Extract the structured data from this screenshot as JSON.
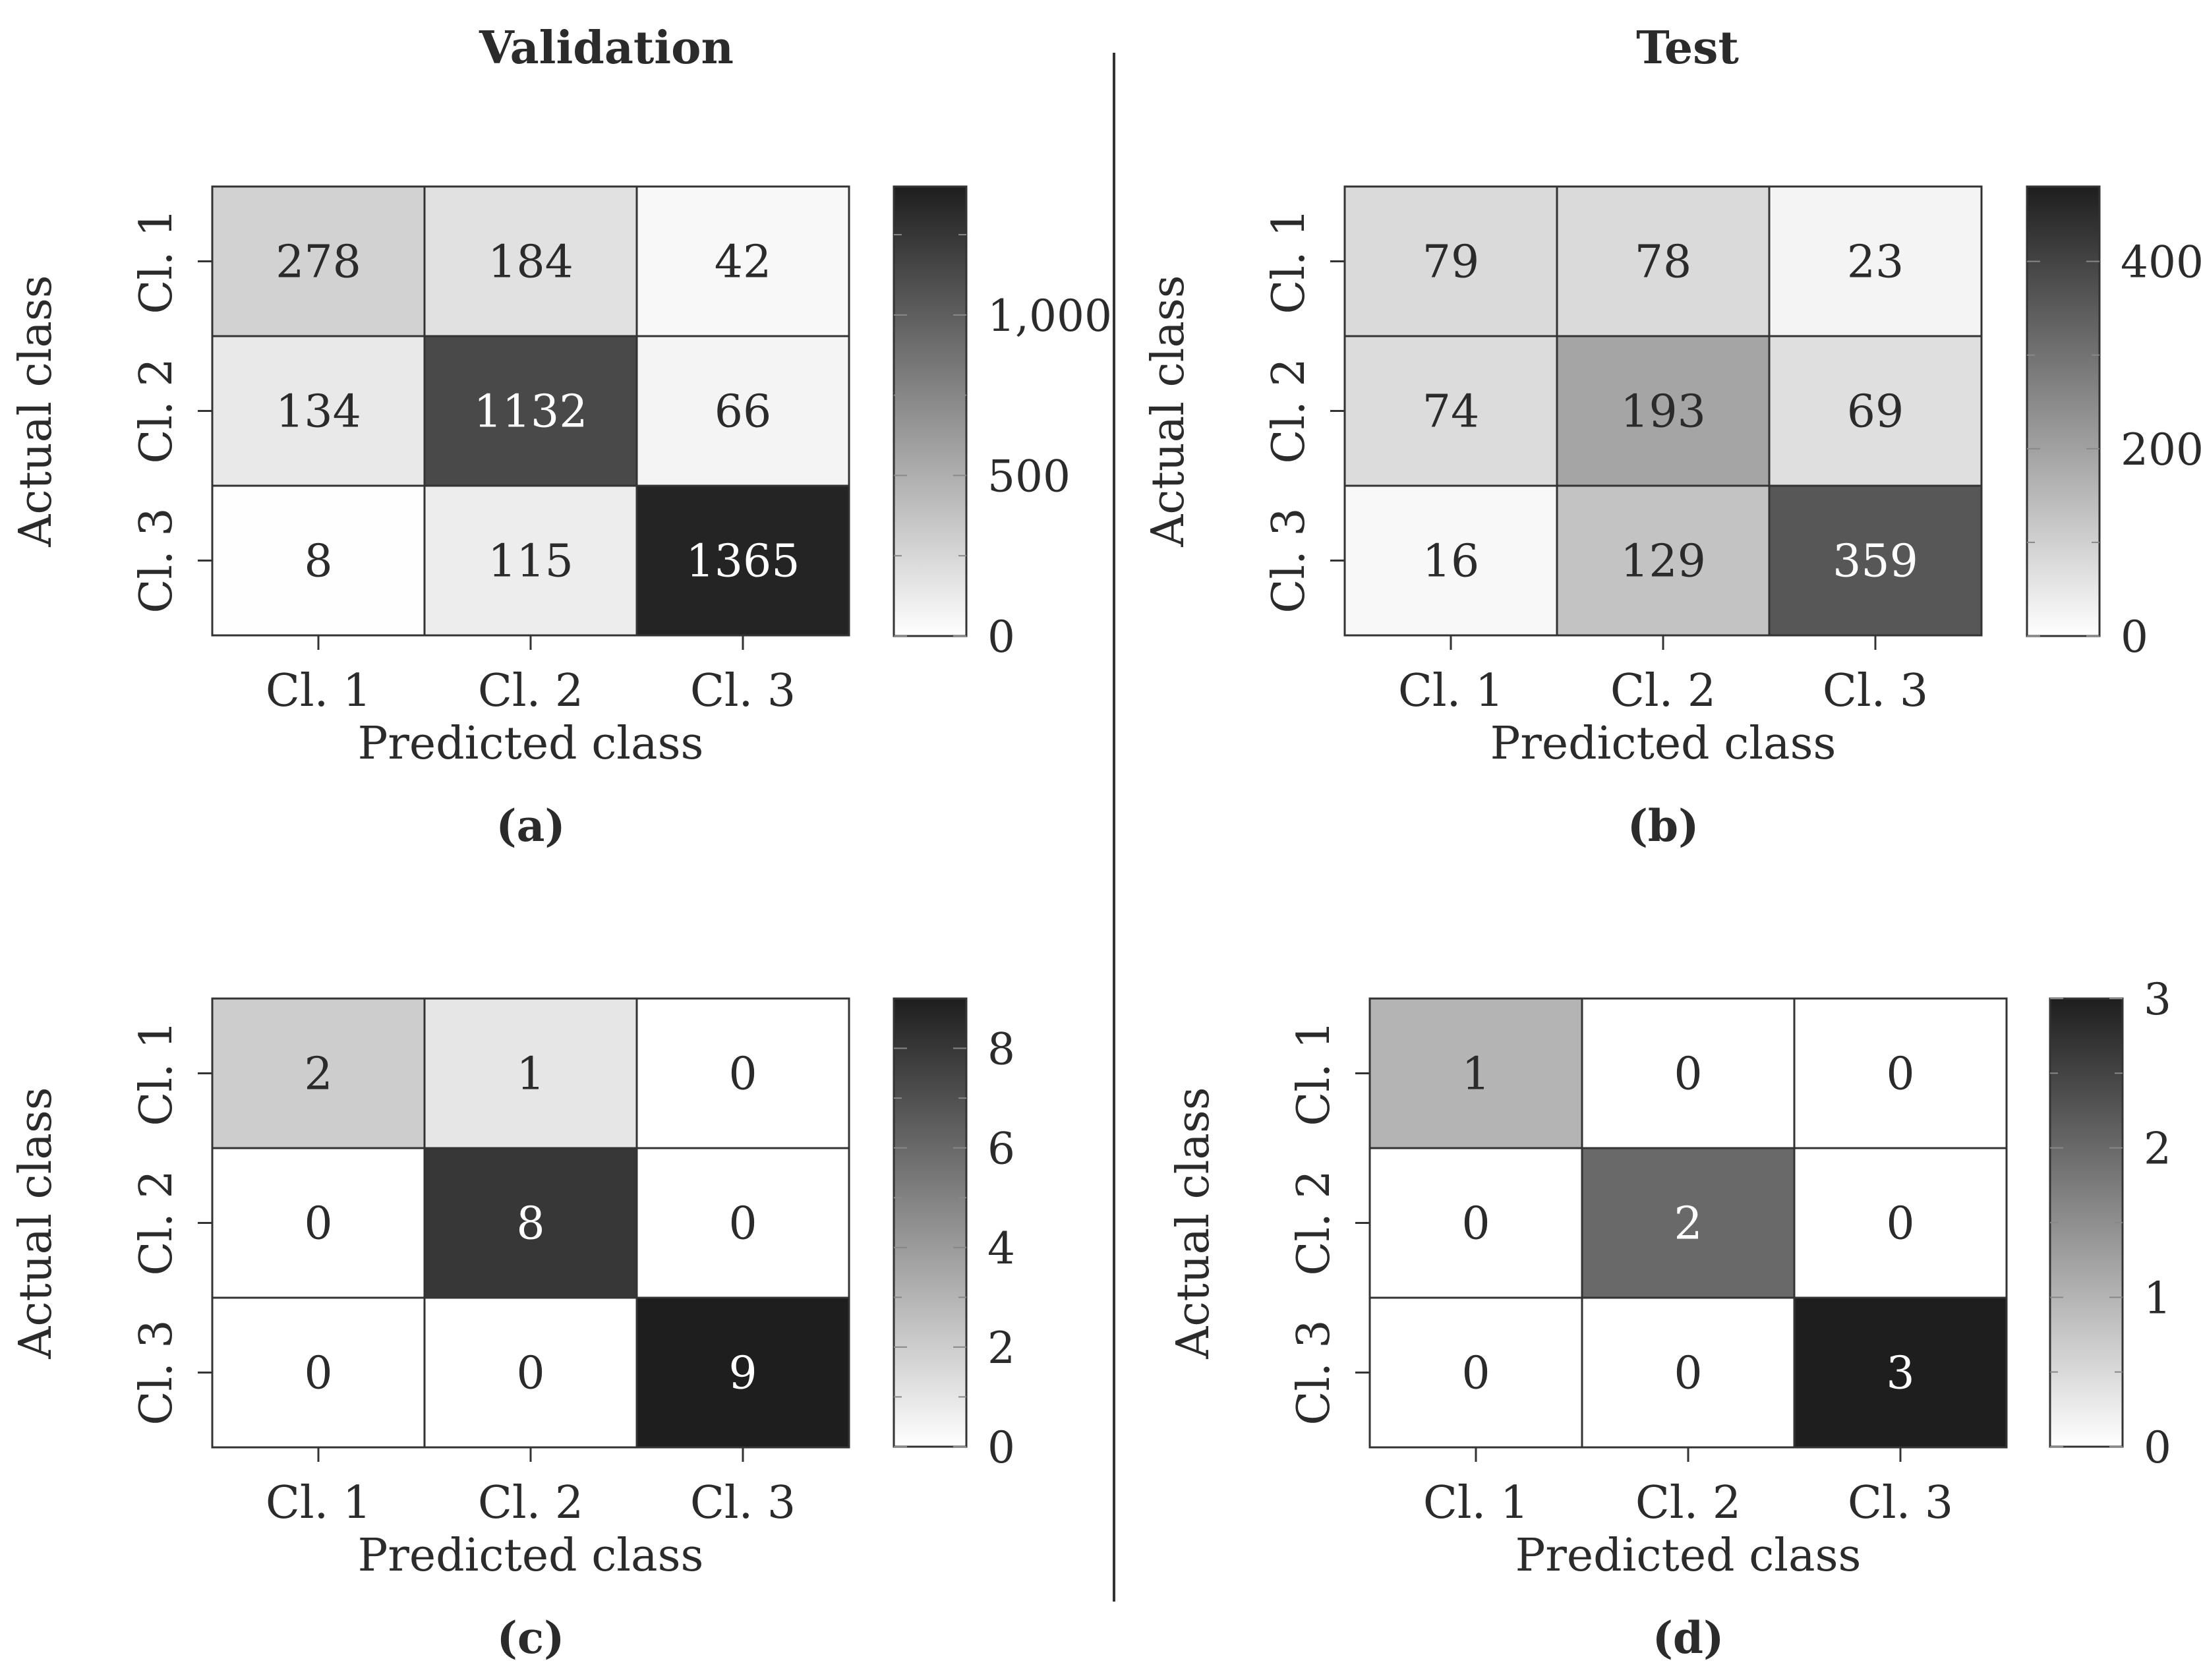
{
  "headers": {
    "validation": "Validation",
    "test": "Test"
  },
  "colors": {
    "ink": "#2b2b2b",
    "cell_border": "#333333",
    "light": "#ffffff",
    "dark": "#1e1e1e"
  },
  "chart_data": [
    {
      "type": "heatmap",
      "panel": "(a)",
      "xlabel": "Predicted class",
      "ylabel": "Actual class",
      "x_categories": [
        "Cl. 1",
        "Cl. 2",
        "Cl. 3"
      ],
      "y_categories": [
        "Cl. 1",
        "Cl. 2",
        "Cl. 3"
      ],
      "values": [
        [
          278,
          184,
          42
        ],
        [
          134,
          1132,
          66
        ],
        [
          8,
          115,
          1365
        ]
      ],
      "cell_labels": [
        [
          "278",
          "184",
          "42"
        ],
        [
          "134",
          "1132",
          "66"
        ],
        [
          "8",
          "115",
          "1365"
        ]
      ],
      "colorbar": {
        "min": 0,
        "max": 1400,
        "ticks": [
          0,
          500,
          1000
        ],
        "tick_labels": [
          "0",
          "500",
          "1,000"
        ],
        "minor_ticks": [
          250,
          750,
          1250
        ]
      }
    },
    {
      "type": "heatmap",
      "panel": "(b)",
      "xlabel": "Predicted class",
      "ylabel": "Actual class",
      "x_categories": [
        "Cl. 1",
        "Cl. 2",
        "Cl. 3"
      ],
      "y_categories": [
        "Cl. 1",
        "Cl. 2",
        "Cl. 3"
      ],
      "values": [
        [
          79,
          78,
          23
        ],
        [
          74,
          193,
          69
        ],
        [
          16,
          129,
          359
        ]
      ],
      "cell_labels": [
        [
          "79",
          "78",
          "23"
        ],
        [
          "74",
          "193",
          "69"
        ],
        [
          "16",
          "129",
          "359"
        ]
      ],
      "colorbar": {
        "min": 0,
        "max": 480,
        "ticks": [
          0,
          200,
          400
        ],
        "tick_labels": [
          "0",
          "200",
          "400"
        ],
        "minor_ticks": [
          100,
          300
        ]
      }
    },
    {
      "type": "heatmap",
      "panel": "(c)",
      "xlabel": "Predicted class",
      "ylabel": "Actual class",
      "x_categories": [
        "Cl. 1",
        "Cl. 2",
        "Cl. 3"
      ],
      "y_categories": [
        "Cl. 1",
        "Cl. 2",
        "Cl. 3"
      ],
      "values": [
        [
          2,
          1,
          0
        ],
        [
          0,
          8,
          0
        ],
        [
          0,
          0,
          9
        ]
      ],
      "cell_labels": [
        [
          "2",
          "1",
          "0"
        ],
        [
          "0",
          "8",
          "0"
        ],
        [
          "0",
          "0",
          "9"
        ]
      ],
      "colorbar": {
        "min": 0,
        "max": 9,
        "ticks": [
          0,
          2,
          4,
          6,
          8
        ],
        "tick_labels": [
          "0",
          "2",
          "4",
          "6",
          "8"
        ],
        "minor_ticks": [
          1,
          3,
          5,
          7
        ]
      }
    },
    {
      "type": "heatmap",
      "panel": "(d)",
      "xlabel": "Predicted class",
      "ylabel": "Actual class",
      "x_categories": [
        "Cl. 1",
        "Cl. 2",
        "Cl. 3"
      ],
      "y_categories": [
        "Cl. 1",
        "Cl. 2",
        "Cl. 3"
      ],
      "values": [
        [
          1,
          0,
          0
        ],
        [
          0,
          2,
          0
        ],
        [
          0,
          0,
          3
        ]
      ],
      "cell_labels": [
        [
          "1",
          "0",
          "0"
        ],
        [
          "0",
          "2",
          "0"
        ],
        [
          "0",
          "0",
          "3"
        ]
      ],
      "colorbar": {
        "min": 0,
        "max": 3,
        "ticks": [
          0,
          1,
          2,
          3
        ],
        "tick_labels": [
          "0",
          "1",
          "2",
          "3"
        ],
        "minor_ticks": [
          0.5,
          1.5,
          2.5
        ]
      }
    }
  ]
}
